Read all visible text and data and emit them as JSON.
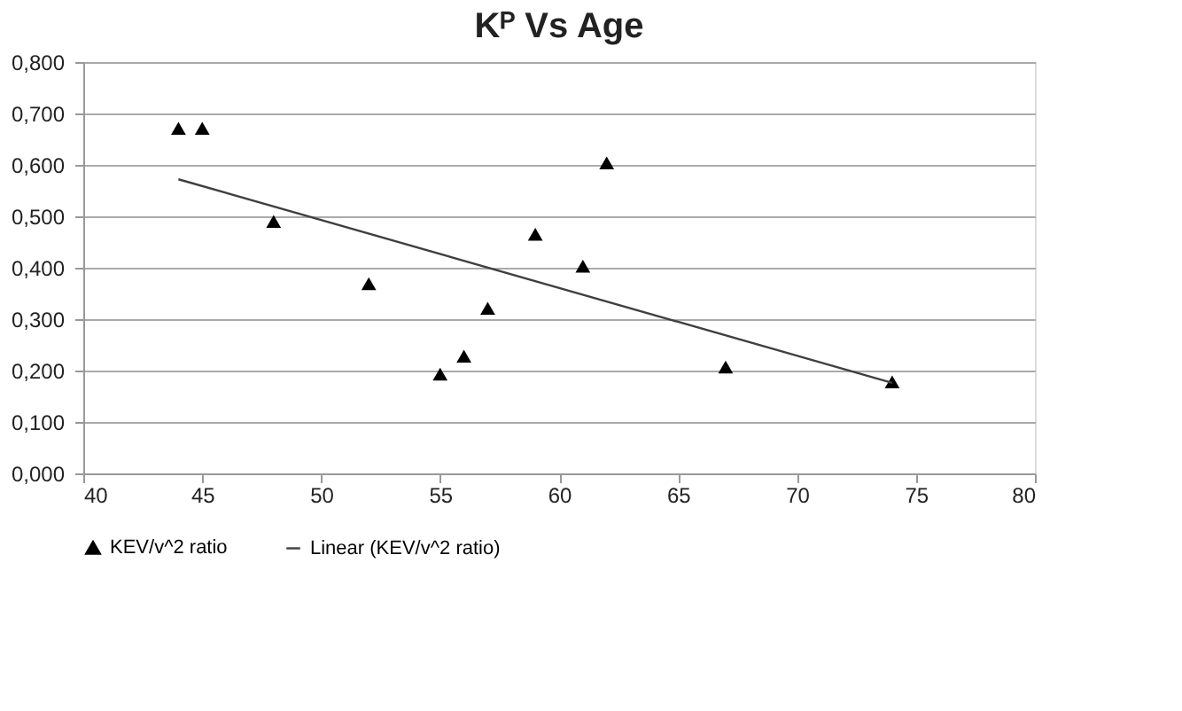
{
  "chart_data": {
    "type": "scatter",
    "title": "Kᴾ Vs Age",
    "series": [
      {
        "name": "KEV/v^2 ratio",
        "type": "scatter",
        "marker": "triangle",
        "color": "#000000",
        "x": [
          44,
          45,
          48,
          52,
          55,
          56,
          57,
          59,
          61,
          62,
          67,
          74
        ],
        "values": [
          0.671,
          0.671,
          0.49,
          0.369,
          0.193,
          0.228,
          0.321,
          0.465,
          0.403,
          0.604,
          0.207,
          0.178
        ]
      },
      {
        "name": "Linear (KEV/v^2 ratio)",
        "type": "line",
        "line_style": "solid",
        "color": "#404040",
        "x": [
          44,
          74
        ],
        "values": [
          0.572,
          0.176
        ]
      }
    ],
    "xlim": [
      40,
      80
    ],
    "xticks": [
      40,
      45,
      50,
      55,
      60,
      65,
      70,
      75,
      80
    ],
    "ylim": [
      0,
      0.8
    ],
    "yticks": [
      {
        "value": 0,
        "label": "0,000"
      },
      {
        "value": 0.1,
        "label": "0,100"
      },
      {
        "value": 0.2,
        "label": "0,200"
      },
      {
        "value": 0.3,
        "label": "0,300"
      },
      {
        "value": 0.4,
        "label": "0,400"
      },
      {
        "value": 0.5,
        "label": "0,500"
      },
      {
        "value": 0.6,
        "label": "0,600"
      },
      {
        "value": 0.7,
        "label": "0,700"
      },
      {
        "value": 0.8,
        "label": "0,800"
      }
    ],
    "grid": "y",
    "legend": "bottom"
  }
}
